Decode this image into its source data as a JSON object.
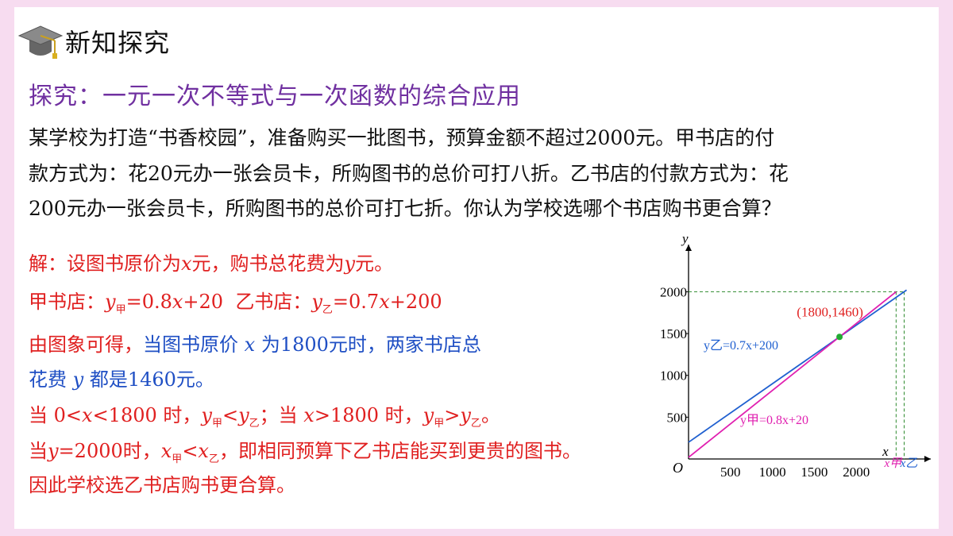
{
  "header": {
    "title": "新知探究",
    "icon": "graduation-cap-icon"
  },
  "subtitle": "探究：一元一次不等式与一次函数的综合应用",
  "problem": {
    "lines": [
      "某学校为打造“书香校园”，准备购买一批图书，预算金额不超过2000元。甲书店的付",
      "款方式为：花20元办一张会员卡，所购图书的总价可打八折。乙书店的付款方式为：花",
      "200元办一张会员卡，所购图书的总价可打七折。你认为学校选哪个书店购书更合算？"
    ]
  },
  "solution": {
    "l1": {
      "a": "解：设图书原价为",
      "x": "x",
      "b": "元，购书总花费为",
      "y": "y",
      "c": "元。"
    },
    "l2": {
      "a": "甲书店：",
      "y": "y",
      "sub1": "甲",
      "eq1": "=0.8",
      "x": "x",
      "eq1b": "+20",
      "b": "乙书店：",
      "y2": "y",
      "sub2": "乙",
      "eq2": "=0.7",
      "x2": "x",
      "eq2b": "+200"
    },
    "l3": {
      "a": "由图象可得，",
      "b": "当图书原价 ",
      "x": "x",
      "c": " 为1800元时，两家书店总"
    },
    "l4": {
      "a": "花费 ",
      "y": "y",
      "b": " 都是1460元。"
    },
    "l5": {
      "a": "当 0<",
      "x": "x",
      "b": "<1800 时，",
      "y1": "y",
      "s1": "甲",
      "lt": "<",
      "y2": "y",
      "s2": "乙",
      "c": "；当 ",
      "x2": "x",
      "d": ">1800 时，",
      "y3": "y",
      "s3": "甲",
      "gt": ">",
      "y4": "y",
      "s4": "乙",
      "e": "。"
    },
    "l6": {
      "a": "当",
      "y": "y",
      "b": "=2000时，",
      "x1": "x",
      "s1": "甲",
      "lt": "<",
      "x2": "x",
      "s2": "乙",
      "c": "，即相同预算下乙书店能买到更贵的图书。"
    },
    "l7": {
      "a": "因此学校选乙书店购书更合算。"
    }
  },
  "chart_data": {
    "type": "line",
    "xlabel": "x",
    "ylabel": "y",
    "origin_label": "O",
    "x_ticks": [
      500,
      1000,
      1500,
      2000
    ],
    "y_ticks": [
      500,
      1000,
      1500,
      2000
    ],
    "xlim": [
      0,
      2350
    ],
    "ylim": [
      0,
      2550
    ],
    "series": [
      {
        "name": "y乙=0.7x+200",
        "slope": 0.7,
        "intercept": 200,
        "x_range": [
          0,
          2600
        ],
        "color": "#2060d0"
      },
      {
        "name": "y甲=0.8x+20",
        "slope": 0.8,
        "intercept": 20,
        "x_range": [
          0,
          2475
        ],
        "color": "#e020b0"
      }
    ],
    "intersection": {
      "x": 1800,
      "y": 1460,
      "label": "(1800,1460)"
    },
    "budget_y": 2000,
    "x_jia": 2475,
    "x_yi": 2571,
    "x_jia_label": "x甲",
    "x_yi_label": "x乙"
  }
}
